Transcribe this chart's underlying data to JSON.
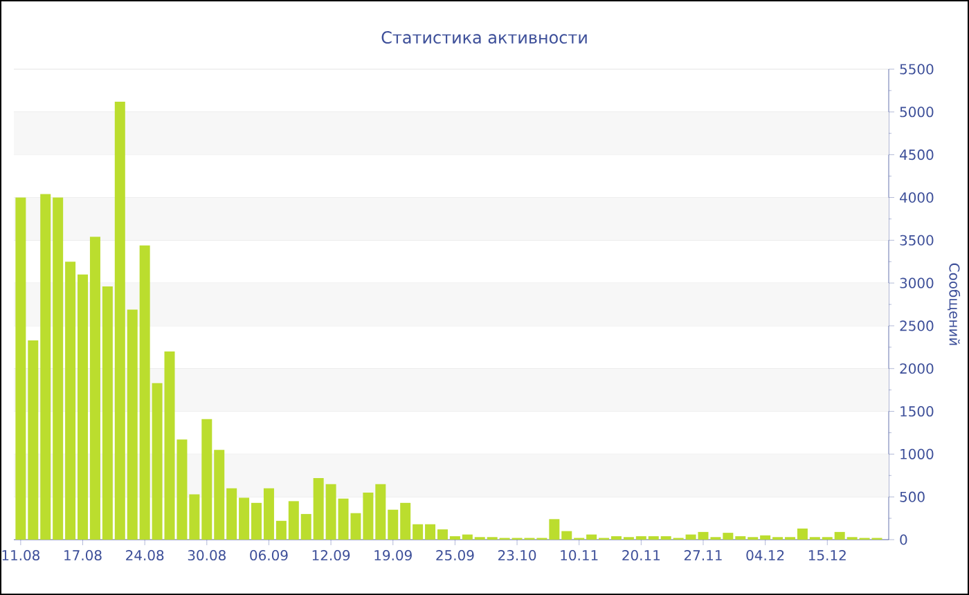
{
  "chart_data": {
    "type": "bar",
    "title": "Статистика активности",
    "ylabel": "Сообщений",
    "categories": [
      "11.08",
      null,
      null,
      null,
      null,
      "17.08",
      null,
      null,
      null,
      null,
      "24.08",
      null,
      null,
      null,
      null,
      "30.08",
      null,
      null,
      null,
      null,
      "06.09",
      null,
      null,
      null,
      null,
      "12.09",
      null,
      null,
      null,
      null,
      "19.09",
      null,
      null,
      null,
      null,
      "25.09",
      null,
      null,
      null,
      null,
      "23.10",
      null,
      null,
      null,
      null,
      "10.11",
      null,
      null,
      null,
      null,
      "20.11",
      null,
      null,
      null,
      null,
      "27.11",
      null,
      null,
      null,
      null,
      "04.12",
      null,
      null,
      null,
      null,
      "15.12",
      null,
      null,
      null,
      null
    ],
    "values": [
      4000,
      2330,
      4040,
      4000,
      3250,
      3100,
      3540,
      2960,
      5120,
      2690,
      3440,
      1830,
      2200,
      1170,
      530,
      1410,
      1050,
      600,
      490,
      430,
      600,
      220,
      450,
      300,
      720,
      650,
      480,
      310,
      550,
      650,
      350,
      430,
      180,
      180,
      120,
      40,
      60,
      30,
      30,
      20,
      20,
      20,
      20,
      240,
      100,
      20,
      60,
      20,
      40,
      30,
      40,
      40,
      40,
      20,
      60,
      90,
      30,
      80,
      40,
      30,
      50,
      30,
      30,
      130,
      30,
      30,
      90,
      30,
      20,
      20
    ],
    "color": "#bbdd2e",
    "ylim": [
      0,
      5500
    ],
    "yticks": [
      0,
      500,
      1000,
      1500,
      2000,
      2500,
      3000,
      3500,
      4000,
      4500,
      5000,
      5500
    ],
    "grid": "y"
  }
}
